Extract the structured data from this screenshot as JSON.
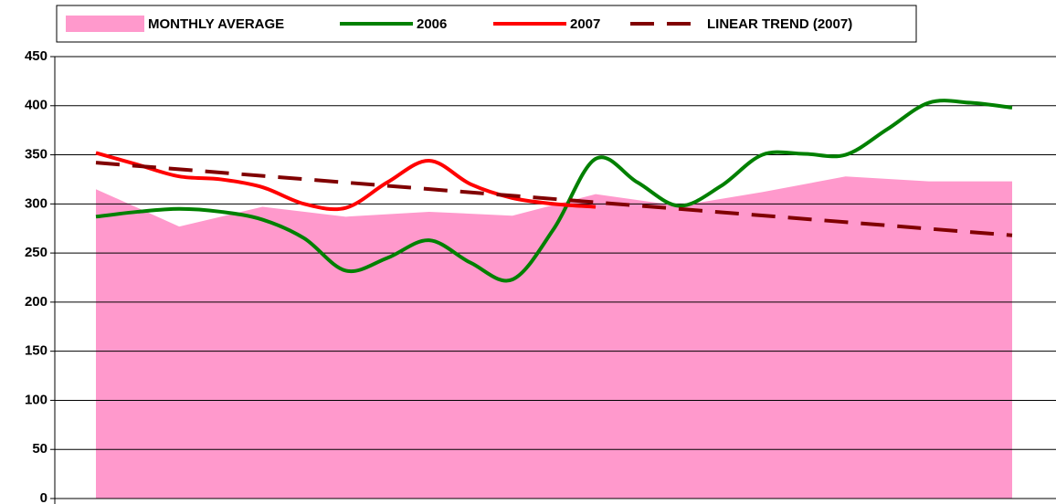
{
  "chart_data": {
    "type": "line",
    "xlim": [
      0,
      11
    ],
    "ylim": [
      0,
      450
    ],
    "yticks": [
      0,
      50,
      100,
      150,
      200,
      250,
      300,
      350,
      400,
      450
    ],
    "grid": true,
    "legend": "top",
    "series": [
      {
        "name": "MONTHLY AVERAGE",
        "color": "#ff99cc",
        "style": "area",
        "x": [
          0,
          1,
          2,
          3,
          4,
          5,
          6,
          7,
          8,
          9,
          10,
          11
        ],
        "values": [
          315,
          277,
          297,
          287,
          292,
          288,
          310,
          298,
          312,
          328,
          323,
          323
        ]
      },
      {
        "name": "2006",
        "color": "#008000",
        "style": "line",
        "x": [
          0,
          0.5,
          1,
          1.5,
          2,
          2.5,
          3,
          3.5,
          4,
          4.5,
          5,
          5.5,
          6,
          6.5,
          7,
          7.5,
          8,
          8.5,
          9,
          9.5,
          10,
          10.5,
          11
        ],
        "values": [
          287,
          292,
          295,
          292,
          284,
          265,
          232,
          245,
          263,
          240,
          223,
          275,
          346,
          322,
          298,
          318,
          350,
          351,
          350,
          376,
          403,
          403,
          398
        ]
      },
      {
        "name": "2007",
        "color": "#ff0000",
        "style": "line",
        "x": [
          0,
          0.5,
          1,
          1.5,
          2,
          2.5,
          3,
          3.5,
          4,
          4.5,
          5,
          5.5,
          6
        ],
        "values": [
          352,
          340,
          328,
          325,
          317,
          300,
          296,
          322,
          344,
          320,
          306,
          300,
          297
        ]
      },
      {
        "name": "LINEAR TREND (2007)",
        "color": "#800000",
        "style": "dashed",
        "x": [
          0,
          11
        ],
        "values": [
          342,
          268
        ]
      }
    ]
  }
}
